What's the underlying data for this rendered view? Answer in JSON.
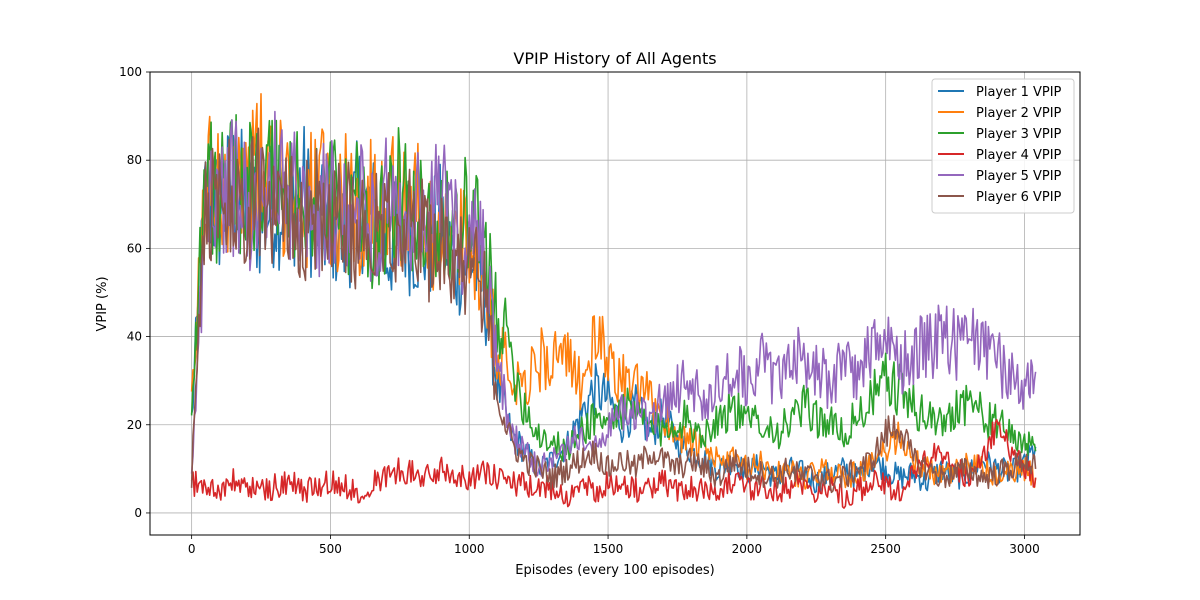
{
  "chart_data": {
    "type": "line",
    "title": "VPIP History of All Agents",
    "xlabel": "Episodes (every 100 episodes)",
    "ylabel": "VPIP (%)",
    "xlim": [
      -150,
      3200
    ],
    "ylim": [
      -5,
      100
    ],
    "xticks": [
      0,
      500,
      1000,
      1500,
      2000,
      2500,
      3000
    ],
    "yticks": [
      0,
      20,
      40,
      60,
      80,
      100
    ],
    "grid": true,
    "legend_position": "top-right",
    "x": [
      0,
      50,
      100,
      150,
      200,
      250,
      300,
      350,
      400,
      450,
      500,
      550,
      600,
      650,
      700,
      750,
      800,
      850,
      900,
      950,
      1000,
      1050,
      1100,
      1150,
      1200,
      1250,
      1300,
      1350,
      1400,
      1450,
      1500,
      1550,
      1600,
      1650,
      1700,
      1750,
      1800,
      1850,
      1900,
      1950,
      2000,
      2050,
      2100,
      2150,
      2200,
      2250,
      2300,
      2350,
      2400,
      2450,
      2500,
      2550,
      2600,
      2650,
      2700,
      2750,
      2800,
      2850,
      2900,
      2950,
      3000,
      3040
    ],
    "series": [
      {
        "name": "Player 1 VPIP",
        "color": "#1f77b4",
        "values": [
          21,
          72,
          68,
          75,
          70,
          66,
          71,
          69,
          74,
          64,
          66,
          62,
          70,
          68,
          58,
          65,
          62,
          60,
          66,
          56,
          58,
          52,
          30,
          18,
          14,
          10,
          12,
          15,
          22,
          28,
          26,
          20,
          24,
          18,
          22,
          16,
          14,
          12,
          10,
          12,
          9,
          11,
          8,
          10,
          9,
          7,
          9,
          10,
          8,
          12,
          10,
          8,
          9,
          7,
          10,
          8,
          9,
          12,
          10,
          9,
          11,
          15
        ]
      },
      {
        "name": "Player 2 VPIP",
        "color": "#ff7f0e",
        "values": [
          23,
          76,
          72,
          78,
          74,
          80,
          72,
          76,
          70,
          74,
          68,
          72,
          66,
          70,
          74,
          68,
          72,
          62,
          66,
          60,
          62,
          56,
          38,
          32,
          30,
          34,
          36,
          34,
          30,
          38,
          36,
          30,
          28,
          26,
          22,
          18,
          16,
          14,
          12,
          12,
          10,
          11,
          9,
          10,
          8,
          9,
          10,
          8,
          9,
          11,
          14,
          18,
          12,
          10,
          8,
          9,
          11,
          10,
          8,
          9,
          10,
          8
        ]
      },
      {
        "name": "Player 3 VPIP",
        "color": "#2ca02c",
        "values": [
          25,
          78,
          70,
          74,
          76,
          72,
          78,
          70,
          74,
          68,
          72,
          66,
          70,
          64,
          68,
          72,
          66,
          70,
          62,
          68,
          66,
          60,
          46,
          36,
          24,
          18,
          16,
          14,
          18,
          22,
          20,
          24,
          22,
          20,
          18,
          22,
          20,
          18,
          22,
          24,
          20,
          22,
          18,
          20,
          24,
          22,
          20,
          18,
          22,
          26,
          30,
          28,
          24,
          22,
          20,
          24,
          26,
          22,
          20,
          18,
          16,
          14
        ]
      },
      {
        "name": "Player 4 VPIP",
        "color": "#d62728",
        "values": [
          7,
          6,
          5,
          7,
          6,
          5,
          6,
          7,
          5,
          6,
          7,
          6,
          5,
          7,
          8,
          10,
          9,
          8,
          10,
          9,
          8,
          9,
          8,
          7,
          6,
          5,
          6,
          4,
          6,
          5,
          7,
          6,
          5,
          6,
          7,
          5,
          6,
          5,
          6,
          7,
          5,
          6,
          5,
          6,
          7,
          5,
          6,
          4,
          5,
          7,
          6,
          5,
          9,
          12,
          14,
          10,
          8,
          12,
          20,
          14,
          10,
          8
        ]
      },
      {
        "name": "Player 5 VPIP",
        "color": "#9467bd",
        "values": [
          7,
          70,
          72,
          74,
          70,
          72,
          76,
          70,
          74,
          68,
          70,
          66,
          72,
          66,
          70,
          64,
          68,
          66,
          72,
          64,
          62,
          58,
          34,
          18,
          14,
          10,
          12,
          14,
          18,
          16,
          20,
          22,
          24,
          20,
          26,
          28,
          30,
          26,
          28,
          32,
          30,
          34,
          30,
          36,
          34,
          32,
          30,
          34,
          32,
          36,
          38,
          34,
          36,
          38,
          40,
          38,
          42,
          36,
          34,
          32,
          30,
          32
        ]
      },
      {
        "name": "Player 6 VPIP",
        "color": "#8c564b",
        "values": [
          8,
          74,
          68,
          72,
          70,
          74,
          68,
          72,
          66,
          70,
          64,
          68,
          62,
          66,
          70,
          64,
          66,
          60,
          64,
          58,
          56,
          52,
          28,
          16,
          12,
          10,
          8,
          10,
          12,
          14,
          10,
          12,
          10,
          14,
          12,
          10,
          12,
          10,
          8,
          12,
          10,
          9,
          8,
          10,
          8,
          9,
          7,
          8,
          10,
          12,
          18,
          20,
          12,
          10,
          8,
          9,
          10,
          8,
          9,
          10,
          12,
          10
        ]
      }
    ]
  }
}
